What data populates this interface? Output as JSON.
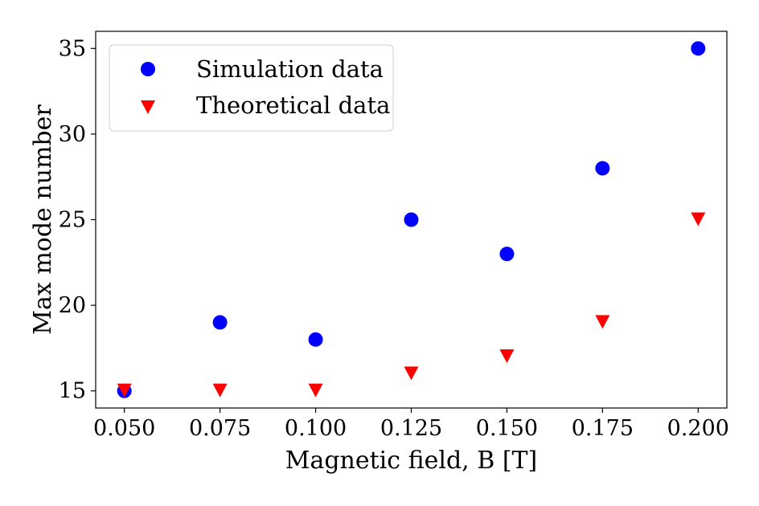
{
  "chart_data": {
    "type": "scatter",
    "xlabel": "Magnetic field, B [T]",
    "ylabel": "Max mode number",
    "xlim": [
      0.0425,
      0.2075
    ],
    "ylim": [
      14.0,
      36.0
    ],
    "xticks": [
      "0.050",
      "0.075",
      "0.100",
      "0.125",
      "0.150",
      "0.175",
      "0.200"
    ],
    "yticks": [
      "15",
      "20",
      "25",
      "30",
      "35"
    ],
    "x": [
      0.05,
      0.075,
      0.1,
      0.125,
      0.15,
      0.175,
      0.2
    ],
    "grid": false,
    "legend_position": "top-left",
    "series": [
      {
        "name": "Simulation data",
        "marker": "circle",
        "color": "#0000ff",
        "values": [
          15,
          19,
          18,
          25,
          23,
          28,
          35
        ]
      },
      {
        "name": "Theoretical data",
        "marker": "triangle-down",
        "color": "#ff0000",
        "values": [
          15,
          15,
          15,
          16,
          17,
          19,
          25
        ]
      }
    ]
  }
}
